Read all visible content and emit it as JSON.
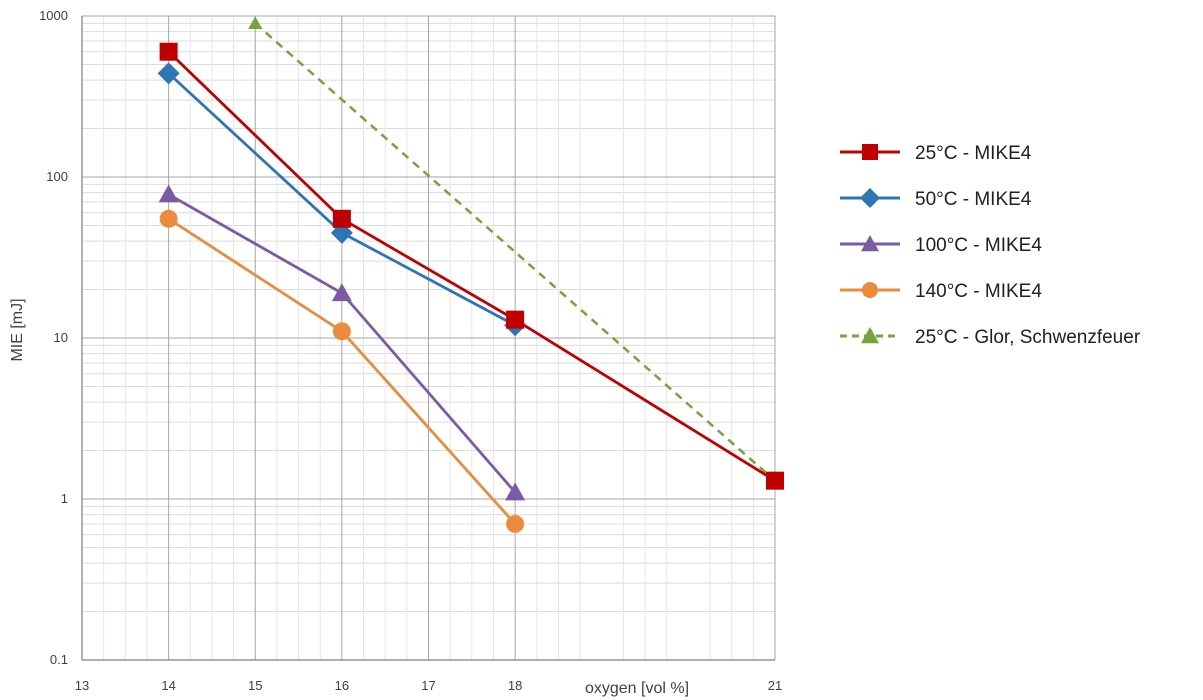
{
  "chart_data": {
    "type": "line",
    "title": "",
    "xlabel": "oxygen [vol %]",
    "ylabel": "MIE [mJ]",
    "xlim": [
      13,
      21
    ],
    "ylim": [
      0.1,
      1000
    ],
    "yscale": "log",
    "x_ticks": [
      13,
      14,
      15,
      16,
      17,
      18,
      21
    ],
    "y_ticks": [
      0.1,
      1,
      10,
      100,
      1000
    ],
    "y_tick_labels": [
      "0.1",
      "1",
      "10",
      "100",
      "1000"
    ],
    "grid": true,
    "legend_position": "right",
    "series": [
      {
        "name": "25°C  - MIKE4",
        "color": "#c00000",
        "marker": "square",
        "dash": false,
        "x": [
          14,
          16,
          18,
          21
        ],
        "y": [
          600,
          55,
          13,
          1.3
        ]
      },
      {
        "name": "50°C  - MIKE4",
        "color": "#2e75b6",
        "marker": "diamond",
        "dash": false,
        "x": [
          14,
          16,
          18
        ],
        "y": [
          440,
          45,
          12
        ]
      },
      {
        "name": "100°C - MIKE4",
        "color": "#7c5ba6",
        "marker": "triangle",
        "dash": false,
        "x": [
          14,
          16,
          18
        ],
        "y": [
          78,
          19,
          1.1
        ]
      },
      {
        "name": "140°C - MIKE4",
        "color": "#ed8b3c",
        "marker": "circle",
        "dash": false,
        "x": [
          14,
          16,
          18
        ],
        "y": [
          55,
          11,
          0.7
        ]
      },
      {
        "name": "25°C -  Glor, Schwenzfeuer",
        "color": "#77a33c",
        "marker": "triangle",
        "dash": true,
        "x": [
          15,
          21
        ],
        "y": [
          900,
          1.3
        ]
      }
    ]
  }
}
